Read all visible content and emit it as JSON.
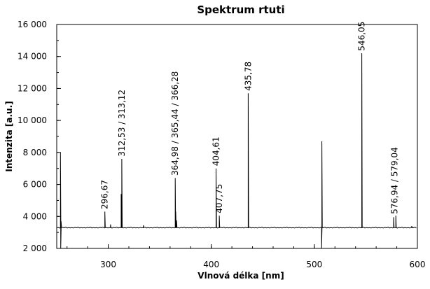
{
  "chart_data": {
    "type": "line",
    "title": "Spektrum rtuti",
    "xlabel": "Vlnová délka [nm]",
    "ylabel": "Intenzita [a.u.]",
    "xlim": [
      250,
      600
    ],
    "ylim": [
      2000,
      16000
    ],
    "x_ticks": [
      300,
      400,
      500,
      600
    ],
    "x_tick_labels": [
      "300",
      "400",
      "500",
      "600"
    ],
    "x_minor_step": 20,
    "y_ticks": [
      2000,
      4000,
      6000,
      8000,
      10000,
      12000,
      14000,
      16000
    ],
    "y_tick_labels": [
      "2 000",
      "4 000",
      "6 000",
      "8 000",
      "10 000",
      "12 000",
      "14 000",
      "16 000"
    ],
    "y_minor_step": 1000,
    "grid": false,
    "baseline": 3300,
    "line_color": "#000000",
    "peaks": [
      {
        "x": 253.6,
        "y": 8000
      },
      {
        "x": 254.2,
        "y": 3700
      },
      {
        "x": 296.67,
        "y": 4300
      },
      {
        "x": 302.2,
        "y": 3500
      },
      {
        "x": 312.53,
        "y": 5400
      },
      {
        "x": 313.12,
        "y": 7600
      },
      {
        "x": 334.1,
        "y": 3450
      },
      {
        "x": 364.98,
        "y": 6400
      },
      {
        "x": 365.44,
        "y": 4300
      },
      {
        "x": 366.28,
        "y": 3750
      },
      {
        "x": 404.61,
        "y": 7000
      },
      {
        "x": 407.75,
        "y": 4050
      },
      {
        "x": 435.78,
        "y": 11700
      },
      {
        "x": 507.3,
        "y": 8700
      },
      {
        "x": 546.05,
        "y": 14200
      },
      {
        "x": 576.94,
        "y": 3950
      },
      {
        "x": 579.04,
        "y": 4050
      },
      {
        "x": 594.5,
        "y": 3400
      }
    ],
    "dips": [
      {
        "x": 253.9,
        "y": 2000
      },
      {
        "x": 507.0,
        "y": 2000
      }
    ],
    "annotations": [
      {
        "text": "296,67",
        "x": 296.67,
        "y": 4450
      },
      {
        "text": "312,53 / 313,12",
        "x": 313.12,
        "y": 7750
      },
      {
        "text": "364,98 / 365,44 / 366,28",
        "x": 364.98,
        "y": 6550
      },
      {
        "text": "404,61",
        "x": 404.61,
        "y": 7150
      },
      {
        "text": "407,75",
        "x": 407.75,
        "y": 4200
      },
      {
        "text": "435,78",
        "x": 435.78,
        "y": 11850
      },
      {
        "text": "546,05",
        "x": 546.05,
        "y": 14350
      },
      {
        "text": "576,94 / 579,04",
        "x": 578.0,
        "y": 4150
      }
    ]
  }
}
